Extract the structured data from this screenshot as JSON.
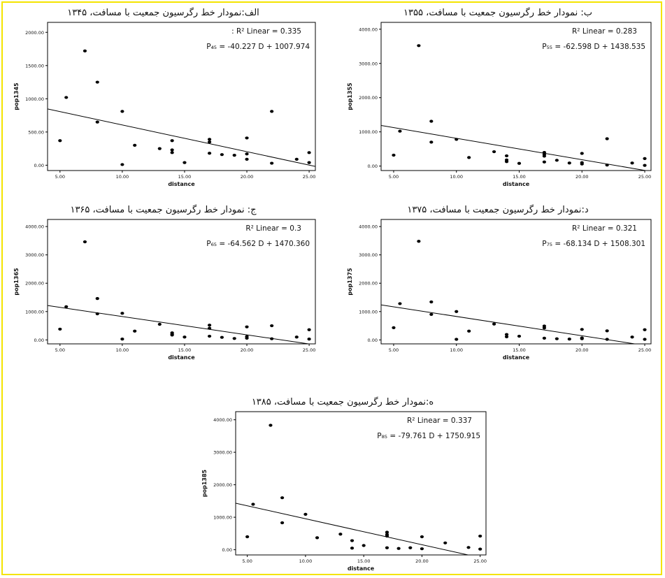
{
  "page": {
    "border_color": "#f4e400"
  },
  "chart_data": [
    {
      "type": "scatter",
      "title": "الف:نمودار خط رگرسیون جمعیت با مسافت، ۱۳۴۵",
      "xlabel": "distance",
      "ylabel": "pop1345",
      "r2_label": ": R² Linear = 0.335",
      "equation_label": "P₄₅ = -40.227 D + 1007.974",
      "xlim": [
        4,
        25.5
      ],
      "ylim": [
        -80,
        2150
      ],
      "x_ticks": [
        "5.00",
        "10.00",
        "15.00",
        "20.00",
        "25.00"
      ],
      "x_tick_values": [
        5,
        10,
        15,
        20,
        25
      ],
      "y_ticks": [
        "0.00",
        "500.00",
        "1000.00",
        "1500.00",
        "2000.00"
      ],
      "y_tick_values": [
        0,
        500,
        1000,
        1500,
        2000
      ],
      "fit": {
        "slope": -40.227,
        "intercept": 1007.974
      },
      "points": [
        [
          5,
          370
        ],
        [
          5.5,
          1020
        ],
        [
          7,
          1720
        ],
        [
          8,
          1250
        ],
        [
          8,
          650
        ],
        [
          10,
          810
        ],
        [
          10,
          10
        ],
        [
          11,
          300
        ],
        [
          13,
          250
        ],
        [
          14,
          370
        ],
        [
          14,
          230
        ],
        [
          14,
          190
        ],
        [
          15,
          40
        ],
        [
          17,
          390
        ],
        [
          17,
          350
        ],
        [
          17,
          180
        ],
        [
          18,
          160
        ],
        [
          19,
          150
        ],
        [
          20,
          410
        ],
        [
          20,
          170
        ],
        [
          20,
          90
        ],
        [
          22,
          810
        ],
        [
          22,
          30
        ],
        [
          24,
          90
        ],
        [
          25,
          190
        ],
        [
          25,
          40
        ]
      ]
    },
    {
      "type": "scatter",
      "title": "ب: نمودار خط رگرسیون جمعیت با مسافت، ۱۳۵۵",
      "xlabel": "distance",
      "ylabel": "pop1355",
      "r2_label": "R² Linear = 0.283",
      "equation_label": "P₅₅ = -62.598 D + 1438.535",
      "xlim": [
        4,
        25.5
      ],
      "ylim": [
        -130,
        4200
      ],
      "x_ticks": [
        "5.00",
        "10.00",
        "15.00",
        "20.00",
        "25.00"
      ],
      "x_tick_values": [
        5,
        10,
        15,
        20,
        25
      ],
      "y_ticks": [
        "0.00",
        "1000.00",
        "2000.00",
        "3000.00",
        "4000.00"
      ],
      "y_tick_values": [
        0,
        1000,
        2000,
        3000,
        4000
      ],
      "fit": {
        "slope": -62.598,
        "intercept": 1438.535
      },
      "points": [
        [
          5,
          320
        ],
        [
          5.5,
          1020
        ],
        [
          7,
          3520
        ],
        [
          8,
          1310
        ],
        [
          8,
          700
        ],
        [
          10,
          780
        ],
        [
          11,
          250
        ],
        [
          13,
          420
        ],
        [
          14,
          300
        ],
        [
          14,
          180
        ],
        [
          14,
          130
        ],
        [
          15,
          80
        ],
        [
          17,
          400
        ],
        [
          17,
          340
        ],
        [
          17,
          290
        ],
        [
          17,
          120
        ],
        [
          18,
          170
        ],
        [
          19,
          90
        ],
        [
          20,
          370
        ],
        [
          20,
          100
        ],
        [
          20,
          60
        ],
        [
          22,
          800
        ],
        [
          22,
          30
        ],
        [
          24,
          90
        ],
        [
          25,
          220
        ],
        [
          25,
          20
        ]
      ]
    },
    {
      "type": "scatter",
      "title": "ج: نمودار خط رگرسیون جمعیت با مسافت، ۱۳۶۵",
      "xlabel": "distance",
      "ylabel": "pop1365",
      "r2_label": "R² Linear = 0.3",
      "equation_label": "P₆₅ = -64.562 D + 1470.360",
      "xlim": [
        4,
        25.5
      ],
      "ylim": [
        -140,
        4250
      ],
      "x_ticks": [
        "5.00",
        "10.00",
        "15.00",
        "20.00",
        "25.00"
      ],
      "x_tick_values": [
        5,
        10,
        15,
        20,
        25
      ],
      "y_ticks": [
        "0.00",
        "1000.00",
        "2000.00",
        "3000.00",
        "4000.00"
      ],
      "y_tick_values": [
        0,
        1000,
        2000,
        3000,
        4000
      ],
      "fit": {
        "slope": -64.562,
        "intercept": 1470.36
      },
      "points": [
        [
          5,
          380
        ],
        [
          5.5,
          1170
        ],
        [
          7,
          3460
        ],
        [
          8,
          1460
        ],
        [
          8,
          920
        ],
        [
          10,
          940
        ],
        [
          10,
          30
        ],
        [
          11,
          310
        ],
        [
          13,
          550
        ],
        [
          14,
          250
        ],
        [
          14,
          200
        ],
        [
          14,
          170
        ],
        [
          15,
          100
        ],
        [
          17,
          520
        ],
        [
          17,
          410
        ],
        [
          17,
          130
        ],
        [
          18,
          90
        ],
        [
          19,
          50
        ],
        [
          20,
          460
        ],
        [
          20,
          120
        ],
        [
          20,
          60
        ],
        [
          22,
          500
        ],
        [
          22,
          40
        ],
        [
          24,
          100
        ],
        [
          25,
          360
        ],
        [
          25,
          30
        ]
      ]
    },
    {
      "type": "scatter",
      "title": "د:نمودار خط رگرسیون جمعیت با مسافت، ۱۳۷۵",
      "xlabel": "distance",
      "ylabel": "pop1375",
      "r2_label": "R² Linear = 0.321",
      "equation_label": "P₇₅ = -68.134 D + 1508.301",
      "xlim": [
        4,
        25.5
      ],
      "ylim": [
        -140,
        4250
      ],
      "x_ticks": [
        "5.00",
        "10.00",
        "15.00",
        "20.00",
        "25.00"
      ],
      "x_tick_values": [
        5,
        10,
        15,
        20,
        25
      ],
      "y_ticks": [
        "0.00",
        "1000.00",
        "2000.00",
        "3000.00",
        "4000.00"
      ],
      "y_tick_values": [
        0,
        1000,
        2000,
        3000,
        4000
      ],
      "fit": {
        "slope": -68.134,
        "intercept": 1508.301
      },
      "points": [
        [
          5,
          430
        ],
        [
          5.5,
          1280
        ],
        [
          7,
          3480
        ],
        [
          8,
          1340
        ],
        [
          8,
          900
        ],
        [
          10,
          1000
        ],
        [
          10,
          20
        ],
        [
          11,
          310
        ],
        [
          13,
          560
        ],
        [
          14,
          190
        ],
        [
          14,
          110
        ],
        [
          15,
          130
        ],
        [
          17,
          490
        ],
        [
          17,
          420
        ],
        [
          17,
          60
        ],
        [
          18,
          40
        ],
        [
          19,
          30
        ],
        [
          20,
          370
        ],
        [
          20,
          70
        ],
        [
          20,
          40
        ],
        [
          22,
          320
        ],
        [
          22,
          20
        ],
        [
          24,
          100
        ],
        [
          25,
          360
        ],
        [
          25,
          20
        ]
      ]
    },
    {
      "type": "scatter",
      "title": "ه:نمودار خط رگرسیون جمعیت با مسافت، ۱۳۸۵",
      "xlabel": "distance",
      "ylabel": "pop1385",
      "r2_label": "R² Linear = 0.337",
      "equation_label": "P₈₅ = -79.761 D + 1750.915",
      "xlim": [
        4,
        25.5
      ],
      "ylim": [
        -160,
        4250
      ],
      "x_ticks": [
        "5.00",
        "10.00",
        "15.00",
        "20.00",
        "25.00"
      ],
      "x_tick_values": [
        5,
        10,
        15,
        20,
        25
      ],
      "y_ticks": [
        "0.00",
        "1000.00",
        "2000.00",
        "3000.00",
        "4000.00"
      ],
      "y_tick_values": [
        0,
        1000,
        2000,
        3000,
        4000
      ],
      "fit": {
        "slope": -79.761,
        "intercept": 1750.915
      },
      "points": [
        [
          5,
          400
        ],
        [
          5.5,
          1400
        ],
        [
          7,
          3830
        ],
        [
          8,
          1600
        ],
        [
          8,
          830
        ],
        [
          10,
          1090
        ],
        [
          11,
          370
        ],
        [
          13,
          480
        ],
        [
          14,
          280
        ],
        [
          14,
          50
        ],
        [
          15,
          130
        ],
        [
          17,
          540
        ],
        [
          17,
          470
        ],
        [
          17,
          420
        ],
        [
          17,
          60
        ],
        [
          18,
          40
        ],
        [
          19,
          60
        ],
        [
          20,
          400
        ],
        [
          20,
          30
        ],
        [
          22,
          210
        ],
        [
          24,
          70
        ],
        [
          25,
          420
        ],
        [
          25,
          20
        ]
      ]
    }
  ]
}
